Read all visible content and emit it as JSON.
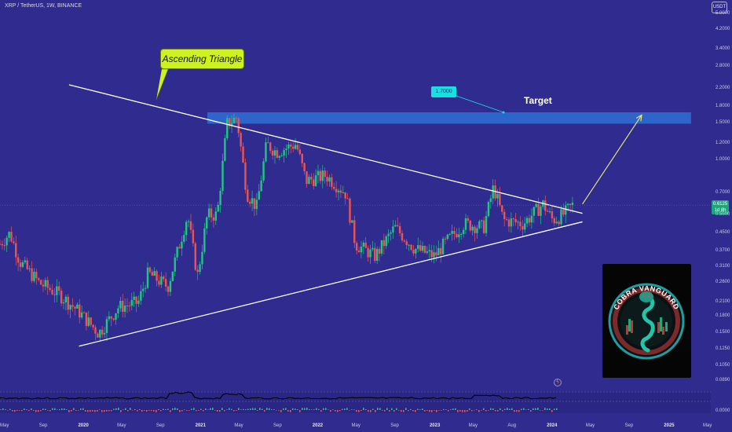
{
  "header": {
    "title": "XRP / TetherUS, 1W, BINANCE"
  },
  "quote_currency": "USDT",
  "annotations": {
    "pattern_label": "Ascending Triangle",
    "target_label": "Target",
    "target_price": "1.7000"
  },
  "current_price": {
    "value": "0.6125",
    "countdown": "1d 8h"
  },
  "logo": {
    "text": "COBRA VANGUARD"
  },
  "colors": {
    "background": "#2f2b8f",
    "up_candle": "#1fc77f",
    "down_candle": "#ef5350",
    "target_zone": "#2f6bd0",
    "callout": "#ccf21f",
    "price_tag": "#16e1e1",
    "arrow": "#ecef7a"
  },
  "y_axis": {
    "scale": "log",
    "ticks": [
      "5.0000",
      "4.2000",
      "3.4000",
      "2.8000",
      "2.2000",
      "1.8000",
      "1.5000",
      "1.2000",
      "1.0000",
      "0.7000",
      "0.5500",
      "0.4500",
      "0.3700",
      "0.3100",
      "0.2600",
      "0.2100",
      "0.1800",
      "0.1500",
      "0.1250",
      "0.1050",
      "0.0890",
      "0.0000"
    ]
  },
  "x_axis": {
    "labels": [
      {
        "text": "May",
        "bold": false
      },
      {
        "text": "Sep",
        "bold": false
      },
      {
        "text": "2020",
        "bold": true
      },
      {
        "text": "May",
        "bold": false
      },
      {
        "text": "Sep",
        "bold": false
      },
      {
        "text": "2021",
        "bold": true
      },
      {
        "text": "May",
        "bold": false
      },
      {
        "text": "Sep",
        "bold": false
      },
      {
        "text": "2022",
        "bold": true
      },
      {
        "text": "May",
        "bold": false
      },
      {
        "text": "Sep",
        "bold": false
      },
      {
        "text": "2023",
        "bold": true
      },
      {
        "text": "May",
        "bold": false
      },
      {
        "text": "Aug",
        "bold": false
      },
      {
        "text": "2024",
        "bold": true
      },
      {
        "text": "May",
        "bold": false
      },
      {
        "text": "Sep",
        "bold": false
      },
      {
        "text": "2025",
        "bold": true
      },
      {
        "text": "May",
        "bold": false
      }
    ]
  },
  "chart_data": {
    "type": "candlestick",
    "title": "XRP / TetherUS, 1W, BINANCE",
    "y_scale": "log",
    "ylim": [
      0.085,
      5.0
    ],
    "x_range": [
      "2019-05",
      "2025-05"
    ],
    "weekly_close_path": [
      [
        "2019-05",
        0.4
      ],
      [
        "2019-06",
        0.45
      ],
      [
        "2019-07",
        0.33
      ],
      [
        "2019-09",
        0.26
      ],
      [
        "2019-11",
        0.23
      ],
      [
        "2020-01",
        0.19
      ],
      [
        "2020-03",
        0.15
      ],
      [
        "2020-05",
        0.2
      ],
      [
        "2020-07",
        0.21
      ],
      [
        "2020-08",
        0.29
      ],
      [
        "2020-10",
        0.25
      ],
      [
        "2020-12",
        0.55
      ],
      [
        "2021-01",
        0.28
      ],
      [
        "2021-02",
        0.55
      ],
      [
        "2021-03",
        0.55
      ],
      [
        "2021-04",
        1.5
      ],
      [
        "2021-05",
        1.6
      ],
      [
        "2021-06",
        0.7
      ],
      [
        "2021-07",
        0.6
      ],
      [
        "2021-08",
        1.2
      ],
      [
        "2021-09",
        1.1
      ],
      [
        "2021-11",
        1.2
      ],
      [
        "2021-12",
        0.8
      ],
      [
        "2022-02",
        0.85
      ],
      [
        "2022-04",
        0.7
      ],
      [
        "2022-05",
        0.4
      ],
      [
        "2022-07",
        0.35
      ],
      [
        "2022-09",
        0.48
      ],
      [
        "2022-11",
        0.38
      ],
      [
        "2023-01",
        0.35
      ],
      [
        "2023-02",
        0.4
      ],
      [
        "2023-04",
        0.5
      ],
      [
        "2023-06",
        0.48
      ],
      [
        "2023-07",
        0.75
      ],
      [
        "2023-08",
        0.52
      ],
      [
        "2023-10",
        0.5
      ],
      [
        "2023-12",
        0.62
      ],
      [
        "2024-01",
        0.52
      ],
      [
        "2024-02",
        0.55
      ],
      [
        "2024-03",
        0.6125
      ]
    ],
    "upper_trendline": [
      [
        "2019-12",
        2.3
      ],
      [
        "2024-04",
        0.56
      ]
    ],
    "lower_trendline": [
      [
        "2020-01",
        0.13
      ],
      [
        "2024-04",
        0.51
      ]
    ],
    "target_zone": {
      "low": 1.5,
      "high": 1.7,
      "from": "2021-02",
      "to": "2025-03"
    },
    "projection_arrow": [
      [
        "2024-04",
        0.62
      ],
      [
        "2024-10",
        1.65
      ]
    ],
    "target_value": 1.7,
    "current_value": 0.6125,
    "has_lower_indicator": true
  }
}
